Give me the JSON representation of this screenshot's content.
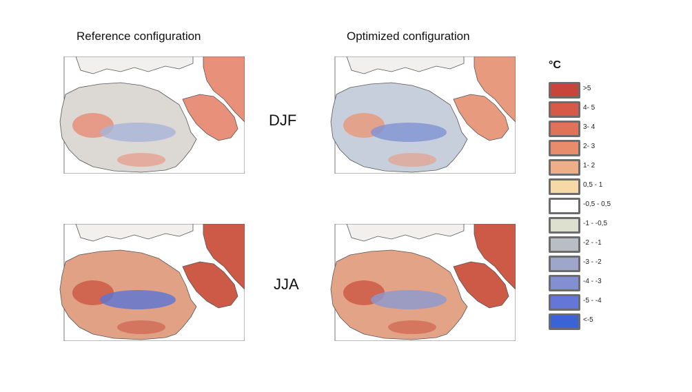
{
  "titles": {
    "reference": "Reference configuration",
    "optimized": "Optimized configuration"
  },
  "seasons": {
    "djf": "DJF",
    "jja": "JJA"
  },
  "legend": {
    "unit": "°C",
    "classes": [
      {
        "label": ">5",
        "color": "#c9443a"
      },
      {
        "label": "4- 5",
        "color": "#d65a47"
      },
      {
        "label": "3- 4",
        "color": "#e07258"
      },
      {
        "label": "2- 3",
        "color": "#e88c6c"
      },
      {
        "label": "1- 2",
        "color": "#efae85"
      },
      {
        "label": "0,5 - 1",
        "color": "#f7d9a8"
      },
      {
        "label": "-0,5 - 0,5",
        "color": "#ffffff"
      },
      {
        "label": "-1 - -0,5",
        "color": "#dde0cf"
      },
      {
        "label": "-2 - -1",
        "color": "#b9bdc4"
      },
      {
        "label": "-3 - -2",
        "color": "#9ea7cb"
      },
      {
        "label": "-4 - -3",
        "color": "#8290d3"
      },
      {
        "label": "-5 - -4",
        "color": "#6477d8"
      },
      {
        "label": "<-5",
        "color": "#3a63d6"
      }
    ]
  },
  "maps": {
    "ref_djf": {
      "land": "#dcd8d4",
      "warm": "#e8907a",
      "cool": "#a7b4d8"
    },
    "opt_djf": {
      "land": "#c8cfdc",
      "warm": "#e89a7e",
      "cool": "#7f92d4"
    },
    "ref_jja": {
      "land": "#e0a184",
      "warm": "#cc5a46",
      "cool": "#5a74d6"
    },
    "opt_jja": {
      "land": "#e3a386",
      "warm": "#cc5a46",
      "cool": "#8a9ad2"
    }
  }
}
